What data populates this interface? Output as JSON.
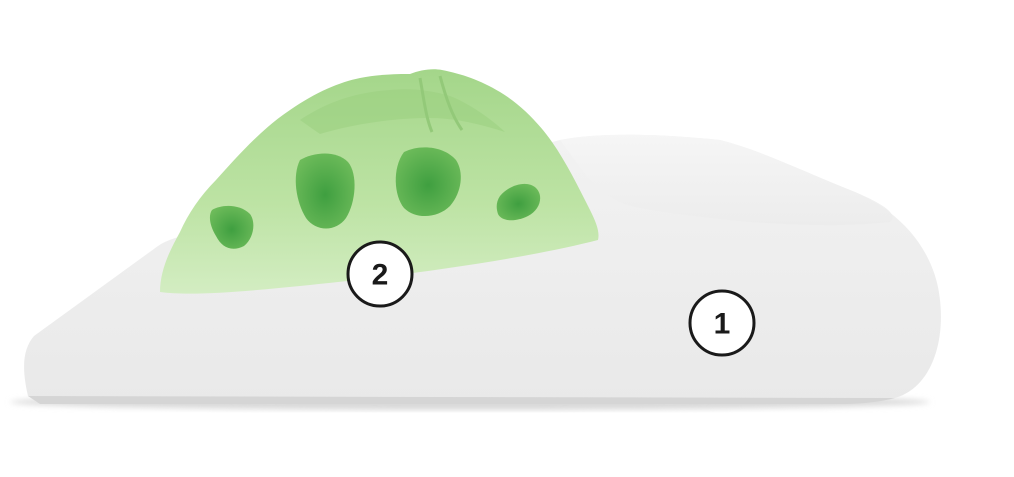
{
  "layers": [
    {
      "number": "1",
      "color": "#f1f1f1",
      "shape": "white-foam-base"
    },
    {
      "number": "2",
      "color": "#a9d98f",
      "shape": "green-ventilated-foam-top"
    }
  ],
  "colors": {
    "base_top": "#f3f3f3",
    "base_side": "#ececec",
    "base_shadow": "#d6d6d6",
    "green_light": "#bfe3a7",
    "green_mid": "#a6d78f",
    "green_dark": "#4aa84a",
    "outline": "#1a1a1a"
  }
}
